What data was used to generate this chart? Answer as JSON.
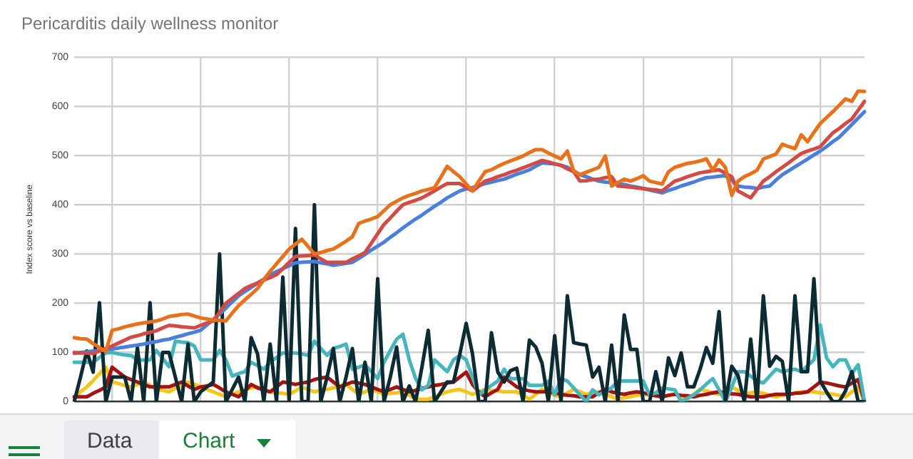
{
  "chart_data": {
    "type": "line",
    "title": "Pericarditis daily wellness monitor",
    "ylabel": "Index score vs baseline",
    "categories": [
      null,
      null,
      null,
      null,
      null,
      null,
      null,
      null,
      null,
      null,
      null,
      null,
      null,
      null,
      null,
      null,
      null,
      null,
      null,
      null,
      null,
      null,
      null,
      null,
      null,
      null,
      null,
      null,
      null,
      null,
      null,
      null,
      null,
      null,
      null,
      null,
      null,
      null,
      null,
      null,
      null,
      null,
      null,
      null,
      null,
      null,
      null,
      null,
      null,
      null,
      null,
      null,
      null,
      null,
      null,
      null,
      null,
      null,
      null,
      null,
      null,
      null,
      null,
      null,
      null,
      null,
      null,
      null,
      null,
      null,
      null,
      null,
      null,
      null,
      null,
      null,
      null,
      null,
      null,
      null,
      null,
      null,
      null,
      null,
      null,
      null,
      null,
      null,
      null,
      null,
      null,
      null,
      null,
      null,
      null,
      null,
      null,
      null,
      null,
      null,
      null,
      null,
      null,
      null,
      null,
      null,
      null,
      null,
      null,
      null,
      null,
      null,
      null,
      null,
      null,
      null,
      null,
      null,
      null,
      null,
      null,
      null,
      null,
      null,
      null,
      null
    ],
    "ylim": [
      0,
      700
    ],
    "yticks": [
      0,
      100,
      200,
      300,
      400,
      500,
      600,
      700
    ],
    "grid": true,
    "legend": false,
    "marker": "none",
    "line_style": "solid",
    "tick_labels": "y",
    "annotations": [
      "Data",
      "Chart"
    ],
    "series": [
      {
        "color": "#e8711a",
        "values": [
          130,
          128,
          127,
          118,
          110,
          102,
          145,
          148,
          152,
          155,
          158,
          160,
          162,
          164,
          168,
          173,
          175,
          177,
          178,
          174,
          170,
          168,
          166,
          165,
          164,
          180,
          195,
          207,
          218,
          230,
          248,
          265,
          280,
          295,
          310,
          320,
          330,
          315,
          300,
          303,
          307,
          310,
          318,
          326,
          335,
          362,
          367,
          371,
          376,
          388,
          400,
          407,
          414,
          419,
          423,
          428,
          431,
          435,
          456,
          478,
          467,
          457,
          442,
          428,
          448,
          467,
          471,
          478,
          484,
          489,
          494,
          499,
          506,
          512,
          512,
          505,
          499,
          493,
          509,
          468,
          461,
          466,
          471,
          476,
          499,
          438,
          445,
          452,
          448,
          453,
          459,
          448,
          445,
          442,
          467,
          476,
          480,
          484,
          486,
          489,
          493,
          470,
          491,
          476,
          419,
          448,
          457,
          463,
          470,
          493,
          498,
          503,
          523,
          518,
          514,
          542,
          528,
          547,
          565,
          577,
          589,
          602,
          615,
          610,
          631,
          630
        ]
      },
      {
        "color": "#d24b45",
        "values": [
          100,
          99,
          99,
          98,
          103,
          108,
          113,
          119,
          125,
          131,
          134,
          138,
          141,
          144,
          150,
          155,
          154,
          152,
          151,
          150,
          155,
          160,
          164,
          182,
          200,
          210,
          220,
          230,
          236,
          241,
          247,
          252,
          258,
          270,
          283,
          295,
          296,
          297,
          298,
          290,
          283,
          283,
          283,
          283,
          290,
          296,
          303,
          322,
          341,
          360,
          373,
          387,
          400,
          405,
          409,
          414,
          421,
          428,
          436,
          443,
          443,
          443,
          435,
          428,
          438,
          448,
          452,
          457,
          461,
          466,
          470,
          475,
          480,
          485,
          490,
          487,
          483,
          480,
          473,
          467,
          448,
          449,
          451,
          452,
          455,
          457,
          438,
          437,
          436,
          434,
          433,
          431,
          430,
          428,
          438,
          448,
          452,
          457,
          461,
          465,
          467,
          469,
          471,
          464,
          457,
          428,
          421,
          414,
          431,
          448,
          457,
          467,
          476,
          485,
          495,
          504,
          509,
          513,
          518,
          532,
          546,
          555,
          565,
          574,
          592,
          610
        ]
      },
      {
        "color": "#4a7fdc",
        "values": [
          98,
          100,
          101,
          103,
          104,
          106,
          107,
          109,
          111,
          113,
          115,
          117,
          120,
          122,
          125,
          127,
          131,
          134,
          138,
          141,
          145,
          156,
          167,
          178,
          190,
          203,
          215,
          224,
          232,
          241,
          249,
          258,
          264,
          270,
          276,
          282,
          283,
          284,
          285,
          282,
          280,
          277,
          279,
          281,
          283,
          291,
          299,
          308,
          316,
          324,
          334,
          343,
          353,
          362,
          371,
          379,
          388,
          397,
          405,
          414,
          421,
          428,
          432,
          435,
          439,
          443,
          446,
          449,
          452,
          457,
          462,
          466,
          471,
          478,
          485,
          484,
          483,
          480,
          476,
          469,
          461,
          457,
          452,
          448,
          446,
          445,
          443,
          441,
          438,
          436,
          433,
          430,
          427,
          424,
          429,
          433,
          438,
          442,
          446,
          451,
          455,
          456,
          458,
          459,
          449,
          438,
          436,
          435,
          433,
          436,
          438,
          450,
          461,
          469,
          477,
          485,
          493,
          501,
          509,
          518,
          528,
          537,
          550,
          563,
          576,
          589
        ]
      },
      {
        "color": "#0d2b33",
        "values": [
          0,
          50,
          103,
          60,
          201,
          0,
          50,
          50,
          50,
          0,
          110,
          0,
          201,
          0,
          100,
          100,
          50,
          0,
          117,
          0,
          20,
          30,
          40,
          300,
          0,
          25,
          50,
          0,
          130,
          97,
          0,
          117,
          0,
          253,
          0,
          352,
          0,
          0,
          400,
          0,
          50,
          108,
          0,
          50,
          108,
          0,
          80,
          0,
          250,
          0,
          50,
          111,
          0,
          32,
          0,
          70,
          145,
          0,
          20,
          40,
          40,
          97,
          159,
          97,
          0,
          0,
          140,
          60,
          40,
          63,
          68,
          0,
          125,
          111,
          78,
          0,
          134,
          0,
          215,
          120,
          117,
          115,
          50,
          70,
          0,
          115,
          0,
          176,
          106,
          106,
          0,
          0,
          61,
          0,
          89,
          53,
          99,
          30,
          30,
          66,
          110,
          78,
          183,
          0,
          72,
          53,
          0,
          127,
          0,
          215,
          72,
          92,
          82,
          0,
          215,
          61,
          61,
          250,
          42,
          20,
          0,
          0,
          22,
          61,
          0,
          0
        ]
      },
      {
        "color": "#46b5bd",
        "values": [
          80,
          80,
          80,
          80,
          90,
          99,
          100,
          97,
          95,
          94,
          85,
          85,
          85,
          104,
          88,
          71,
          123,
          121,
          120,
          113,
          85,
          85,
          85,
          104,
          85,
          52,
          57,
          61,
          80,
          73,
          66,
          80,
          90,
          99,
          99,
          99,
          97,
          94,
          123,
          108,
          94,
          108,
          112,
          117,
          66,
          70,
          75,
          61,
          47,
          80,
          104,
          127,
          137,
          85,
          47,
          24,
          33,
          85,
          73,
          61,
          85,
          94,
          85,
          50,
          14,
          24,
          33,
          42,
          66,
          47,
          47,
          47,
          33,
          33,
          33,
          42,
          14,
          47,
          42,
          28,
          14,
          0,
          24,
          14,
          21,
          28,
          42,
          42,
          42,
          42,
          42,
          14,
          18,
          28,
          26,
          24,
          0,
          7,
          14,
          24,
          36,
          47,
          24,
          0,
          30,
          61,
          61,
          52,
          42,
          38,
          52,
          66,
          61,
          64,
          66,
          61,
          73,
          85,
          156,
          89,
          71,
          85,
          85,
          57,
          75,
          0
        ]
      },
      {
        "color": "#a51212",
        "values": [
          10,
          10,
          10,
          17,
          23,
          30,
          70,
          60,
          50,
          45,
          40,
          35,
          30,
          30,
          30,
          30,
          35,
          40,
          32,
          25,
          30,
          32,
          35,
          28,
          20,
          15,
          10,
          22,
          35,
          28,
          24,
          20,
          30,
          40,
          38,
          35,
          38,
          40,
          45,
          48,
          50,
          40,
          30,
          35,
          40,
          38,
          35,
          30,
          25,
          20,
          25,
          30,
          25,
          20,
          23,
          27,
          30,
          33,
          35,
          38,
          40,
          50,
          60,
          35,
          20,
          10,
          18,
          25,
          50,
          40,
          30,
          25,
          22,
          20,
          20,
          20,
          18,
          15,
          13,
          12,
          10,
          10,
          10,
          18,
          25,
          20,
          17,
          15,
          18,
          20,
          18,
          15,
          12,
          10,
          13,
          15,
          13,
          12,
          10,
          13,
          15,
          18,
          20,
          18,
          16,
          15,
          12,
          10,
          10,
          10,
          13,
          15,
          15,
          15,
          17,
          18,
          20,
          30,
          40,
          38,
          35,
          32,
          30,
          38,
          45,
          0
        ]
      },
      {
        "color": "#f5c518",
        "values": [
          10,
          20,
          30,
          43,
          57,
          70,
          40,
          37,
          33,
          30,
          35,
          40,
          33,
          25,
          23,
          20,
          27,
          33,
          40,
          35,
          30,
          25,
          20,
          15,
          10,
          15,
          20,
          25,
          28,
          30,
          25,
          20,
          18,
          17,
          15,
          22,
          30,
          25,
          20,
          23,
          25,
          28,
          32,
          35,
          25,
          15,
          20,
          25,
          20,
          15,
          17,
          18,
          20,
          13,
          5,
          5,
          5,
          10,
          15,
          20,
          23,
          25,
          20,
          15,
          20,
          25,
          23,
          22,
          20,
          20,
          20,
          13,
          5,
          15,
          25,
          18,
          13,
          10,
          18,
          25,
          20,
          15,
          18,
          20,
          15,
          10,
          5,
          8,
          10,
          13,
          15,
          13,
          12,
          10,
          13,
          15,
          10,
          5,
          15,
          25,
          22,
          18,
          15,
          23,
          30,
          23,
          15,
          18,
          20,
          17,
          13,
          10,
          13,
          15,
          18,
          20,
          20,
          20,
          18,
          17,
          15,
          13,
          10,
          20,
          30,
          0
        ]
      }
    ]
  }
}
